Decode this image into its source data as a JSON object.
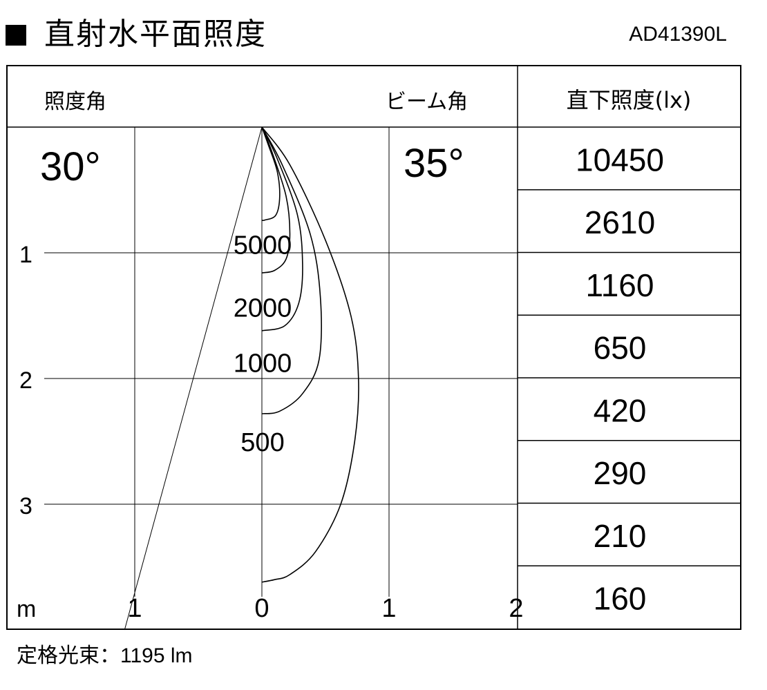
{
  "header": {
    "title": "直射水平面照度",
    "model": "AD41390L"
  },
  "chart_data": {
    "type": "line",
    "illuminance_angle_label": "照度角",
    "illuminance_angle": "30°",
    "beam_angle_label": "ビーム角",
    "beam_angle": "35°",
    "unit_m": "m",
    "x_ticks": [
      "1",
      "0",
      "1",
      "2"
    ],
    "y_ticks": [
      "1",
      "2",
      "3"
    ],
    "xlim": [
      -1,
      2
    ],
    "ylim": [
      0,
      4
    ],
    "contours": [
      {
        "name": "5000",
        "points": [
          [
            0,
            0
          ],
          [
            0.05,
            0.14
          ],
          [
            0.12,
            0.35
          ],
          [
            0.14,
            0.55
          ],
          [
            0.11,
            0.7
          ],
          [
            0.02,
            0.74
          ],
          [
            0,
            0.74
          ]
        ]
      },
      {
        "name": "2000",
        "points": [
          [
            0,
            0
          ],
          [
            0.08,
            0.2
          ],
          [
            0.19,
            0.55
          ],
          [
            0.22,
            0.85
          ],
          [
            0.19,
            1.05
          ],
          [
            0.1,
            1.14
          ],
          [
            0,
            1.16
          ]
        ]
      },
      {
        "name": "1000",
        "points": [
          [
            0,
            0
          ],
          [
            0.12,
            0.25
          ],
          [
            0.28,
            0.7
          ],
          [
            0.32,
            1.1
          ],
          [
            0.29,
            1.4
          ],
          [
            0.18,
            1.58
          ],
          [
            0,
            1.62
          ]
        ]
      },
      {
        "name": "500",
        "points": [
          [
            0,
            0
          ],
          [
            0.16,
            0.3
          ],
          [
            0.38,
            0.85
          ],
          [
            0.46,
            1.35
          ],
          [
            0.45,
            1.85
          ],
          [
            0.32,
            2.12
          ],
          [
            0.14,
            2.26
          ],
          [
            0,
            2.28
          ]
        ]
      },
      {
        "name": "",
        "points": [
          [
            0,
            0
          ],
          [
            0.22,
            0.3
          ],
          [
            0.5,
            0.9
          ],
          [
            0.7,
            1.5
          ],
          [
            0.76,
            2.0
          ],
          [
            0.73,
            2.5
          ],
          [
            0.62,
            3.0
          ],
          [
            0.42,
            3.38
          ],
          [
            0.22,
            3.56
          ],
          [
            0.1,
            3.6
          ],
          [
            0,
            3.62
          ]
        ]
      }
    ],
    "contour_labels": [
      "5000",
      "2000",
      "1000",
      "500"
    ],
    "half_angle_line": {
      "from": [
        0,
        0
      ],
      "to": [
        -1.08,
        4.0
      ]
    },
    "table": {
      "header": "直下照度(lx)",
      "values": [
        "10450",
        "2610",
        "1160",
        "650",
        "420",
        "290",
        "210",
        "160"
      ]
    }
  },
  "footer": {
    "label": "定格光束：",
    "value": "1195 lm"
  }
}
